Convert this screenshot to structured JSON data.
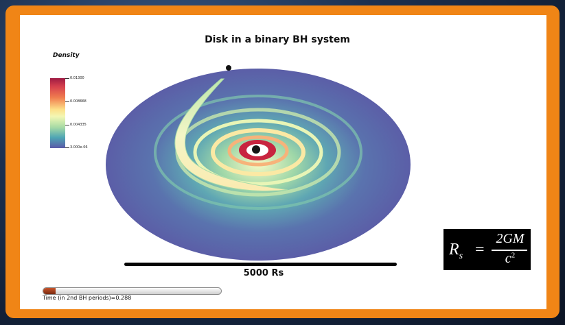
{
  "title": "Disk in a binary BH system",
  "colorbar": {
    "title": "Density",
    "ticks": [
      "0.01300",
      "0.008668",
      "0.004335",
      "3.000e-06"
    ]
  },
  "scale_bar_label": "5000 Rs",
  "formula": {
    "lhs": "R",
    "lhs_sub": "s",
    "equals": "=",
    "numerator": "2GM",
    "denominator": "c",
    "denominator_sup": "2"
  },
  "time_label": "Time (in 2nd BH periods)=0.288",
  "progress_fraction": 0.07,
  "colors": {
    "frame": "#f08516",
    "disk_base": "#5b64aa",
    "ring_hot": "#c8243f"
  }
}
